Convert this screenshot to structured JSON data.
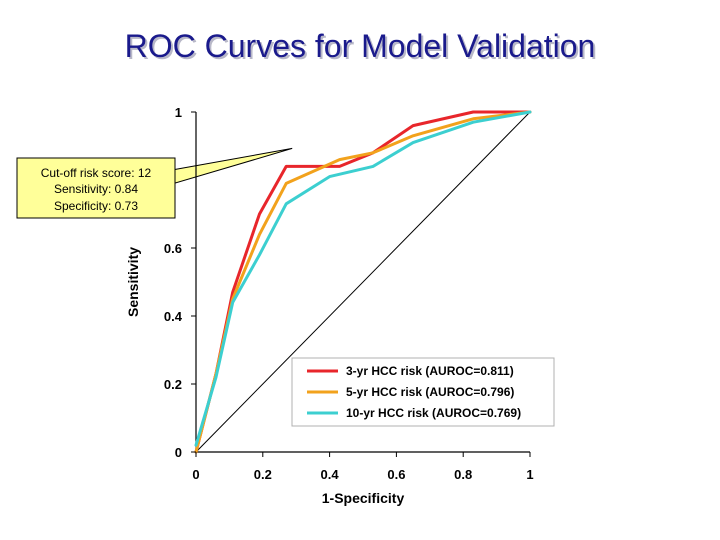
{
  "title": "ROC Curves for Model Validation",
  "callout": {
    "lines": [
      "Cut-off risk score: 12",
      "Sensitivity: 0.84",
      "Specificity: 0.73"
    ]
  },
  "chart_data": {
    "type": "line",
    "title": "",
    "xlabel": "1-Specificity",
    "ylabel": "Sensitivity",
    "xlim": [
      0,
      1
    ],
    "ylim": [
      0,
      1
    ],
    "x_ticks": [
      "0",
      "0.2",
      "0.4",
      "0.6",
      "0.8",
      "1"
    ],
    "y_ticks": [
      "0",
      "0.2",
      "0.4",
      "0.6",
      "1"
    ],
    "y_tick_values": [
      0,
      0.2,
      0.4,
      0.6,
      1
    ],
    "grid": false,
    "legend_position": "bottom-right",
    "series": [
      {
        "name": "3-yr HCC risk (AUROC=0.811)",
        "color": "#e8262b",
        "x": [
          0,
          0.06,
          0.11,
          0.19,
          0.27,
          0.43,
          0.53,
          0.65,
          0.83,
          1
        ],
        "y": [
          0,
          0.23,
          0.47,
          0.7,
          0.84,
          0.84,
          0.88,
          0.96,
          1,
          1
        ]
      },
      {
        "name": "5-yr HCC risk (AUROC=0.796)",
        "color": "#f2a21c",
        "x": [
          0,
          0.06,
          0.11,
          0.19,
          0.27,
          0.43,
          0.53,
          0.65,
          0.83,
          1
        ],
        "y": [
          0,
          0.23,
          0.45,
          0.64,
          0.79,
          0.86,
          0.88,
          0.93,
          0.98,
          1
        ]
      },
      {
        "name": "10-yr HCC risk (AUROC=0.769)",
        "color": "#3ccfd0",
        "x": [
          0,
          0.06,
          0.11,
          0.19,
          0.27,
          0.4,
          0.53,
          0.65,
          0.83,
          1
        ],
        "y": [
          0.02,
          0.22,
          0.44,
          0.58,
          0.73,
          0.81,
          0.84,
          0.91,
          0.97,
          1
        ]
      }
    ],
    "reference_line": {
      "x": [
        0,
        1
      ],
      "y": [
        0,
        1
      ],
      "color": "#000000"
    },
    "cutoff_point": {
      "x": 0.27,
      "y": 0.84
    }
  }
}
